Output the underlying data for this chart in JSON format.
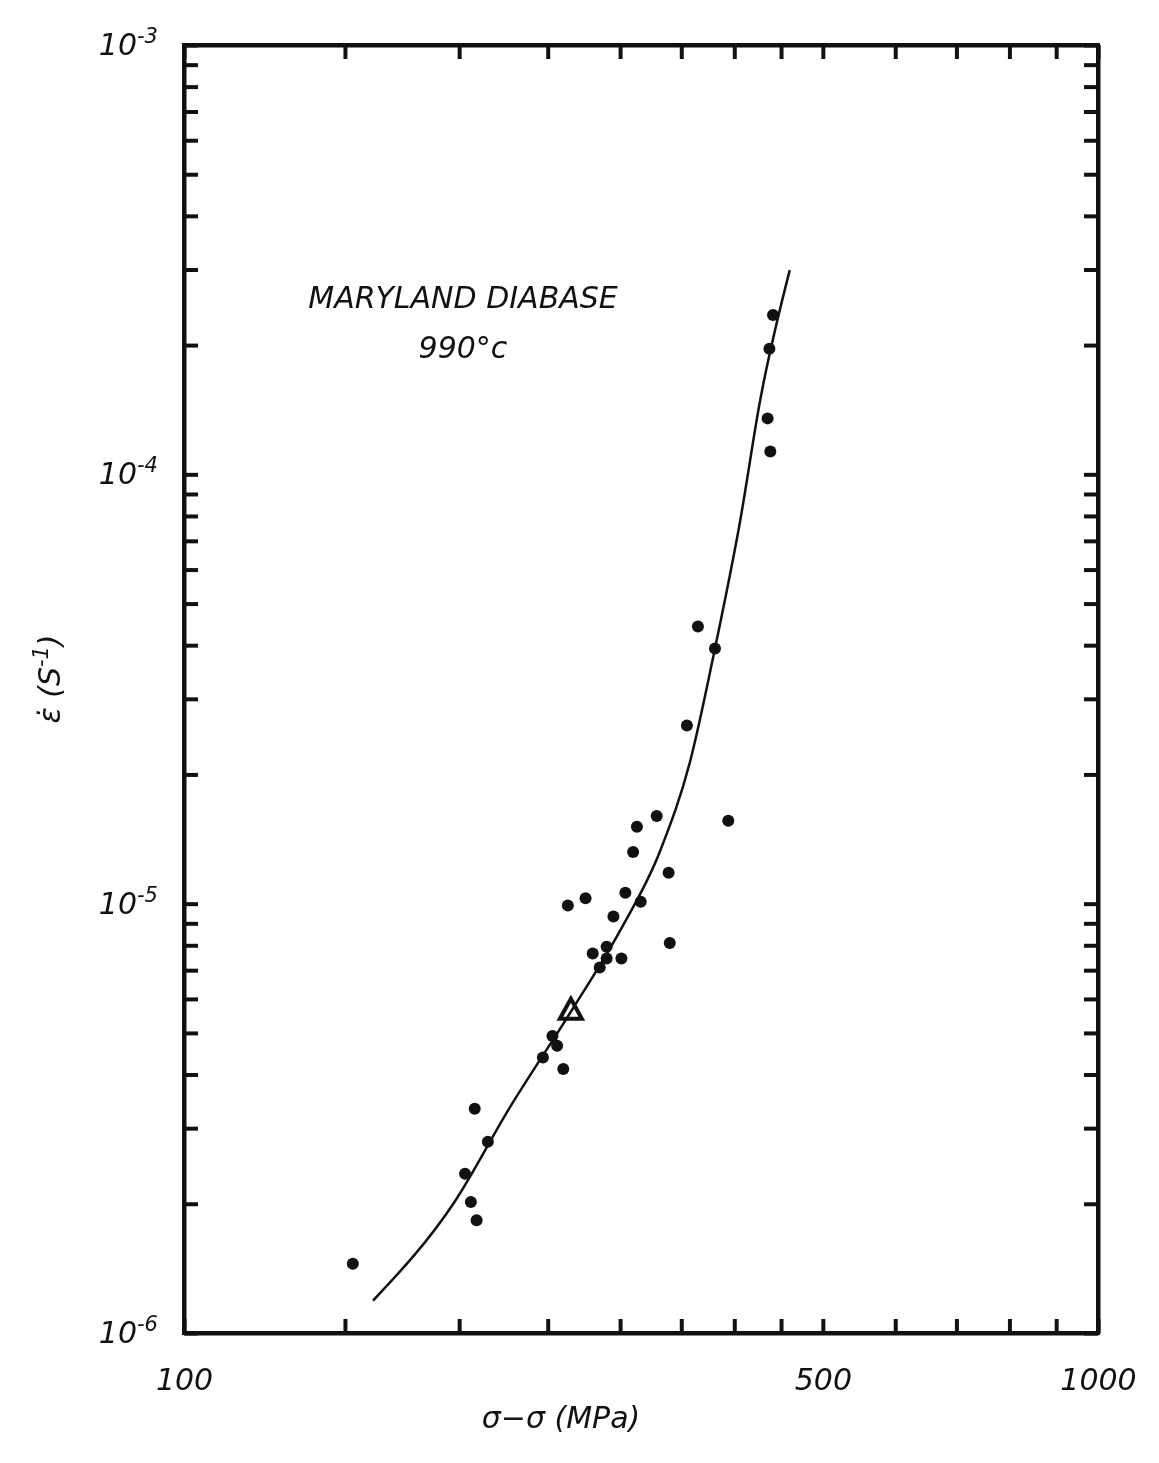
{
  "chart_data": {
    "type": "scatter",
    "log": "xy",
    "xlabel": "σ−σ (MPa)",
    "ylabel": "ε̇ (S$^{-1}$)",
    "annotations": [
      "MARYLAND DIABASE",
      "990°c"
    ],
    "marker": "circle",
    "grid": false,
    "xlim": [
      100,
      1000
    ],
    "ylim": [
      1e-06,
      0.001
    ],
    "xticks": [
      100,
      {
        "value": 150,
        "label": null
      },
      {
        "value": 200,
        "label": null
      },
      {
        "value": 250,
        "label": null
      },
      {
        "value": 300,
        "label": null
      },
      {
        "value": 350,
        "label": null
      },
      {
        "value": 400,
        "label": null
      },
      {
        "value": 450,
        "label": null
      },
      500,
      {
        "value": 600,
        "label": null
      },
      {
        "value": 700,
        "label": null
      },
      {
        "value": 800,
        "label": null
      },
      {
        "value": 900,
        "label": null
      },
      1000
    ],
    "yticks": [
      {
        "value": 1e-06,
        "label": "10$^{-6}$"
      },
      {
        "value": 2e-06,
        "label": null
      },
      {
        "value": 3e-06,
        "label": null
      },
      {
        "value": 4e-06,
        "label": null
      },
      {
        "value": 5e-06,
        "label": null
      },
      {
        "value": 6e-06,
        "label": null
      },
      {
        "value": 7e-06,
        "label": null
      },
      {
        "value": 8e-06,
        "label": null
      },
      {
        "value": 9e-06,
        "label": null
      },
      {
        "value": 1e-05,
        "label": "10$^{-5}$"
      },
      {
        "value": 2e-05,
        "label": null
      },
      {
        "value": 3e-05,
        "label": null
      },
      {
        "value": 4e-05,
        "label": null
      },
      {
        "value": 5e-05,
        "label": null
      },
      {
        "value": 6e-05,
        "label": null
      },
      {
        "value": 7e-05,
        "label": null
      },
      {
        "value": 8e-05,
        "label": null
      },
      {
        "value": 9e-05,
        "label": null
      },
      {
        "value": 0.0001,
        "label": "10$^{-4}$"
      },
      {
        "value": 0.0002,
        "label": null
      },
      {
        "value": 0.0003,
        "label": null
      },
      {
        "value": 0.0004,
        "label": null
      },
      {
        "value": 0.0005,
        "label": null
      },
      {
        "value": 0.0006,
        "label": null
      },
      {
        "value": 0.0007,
        "label": null
      },
      {
        "value": 0.0008,
        "label": null
      },
      {
        "value": 0.0009,
        "label": null
      },
      {
        "value": 0.001,
        "label": "10$^{-3}$"
      }
    ],
    "series": [
      {
        "color": "#111111",
        "x": [
          153,
          203,
          206,
          209,
          208,
          215,
          247,
          253,
          256,
          260,
          263,
          275,
          280,
          285,
          290,
          290,
          295,
          301,
          304,
          316,
          310,
          313,
          329,
          339,
          340,
          394,
          355,
          365,
          381,
          441,
          437,
          435,
          438
        ],
        "values": [
          1.45e-06,
          2.35e-06,
          2.02e-06,
          1.83e-06,
          3.33e-06,
          2.79e-06,
          4.38e-06,
          4.92e-06,
          4.67e-06,
          4.12e-06,
          9.9e-06,
          1.03e-05,
          7.65e-06,
          7.1e-06,
          7.94e-06,
          7.45e-06,
          9.33e-06,
          7.45e-06,
          1.06e-05,
          1.01e-05,
          1.32e-05,
          1.51e-05,
          1.6e-05,
          1.18e-05,
          8.1e-06,
          1.56e-05,
          2.6e-05,
          4.42e-05,
          3.93e-05,
          0.000235,
          0.000196,
          0.000135,
          0.000113
        ]
      },
      {
        "marker": "triangle",
        "color": "#111111",
        "x": [
          265
        ],
        "values": [
          5.63e-06
        ]
      },
      {
        "type": "line",
        "marker": "none",
        "color": "#111111",
        "x": [
          161,
          198,
          227,
          265,
          300,
          332,
          358,
          381,
          406,
          427,
          460
        ],
        "values": [
          1.19e-06,
          2.03e-06,
          3.34e-06,
          5.6e-06,
          8.65e-06,
          1.33e-05,
          2.15e-05,
          3.93e-05,
          7.8e-05,
          0.000149,
          0.000299
        ]
      }
    ]
  }
}
